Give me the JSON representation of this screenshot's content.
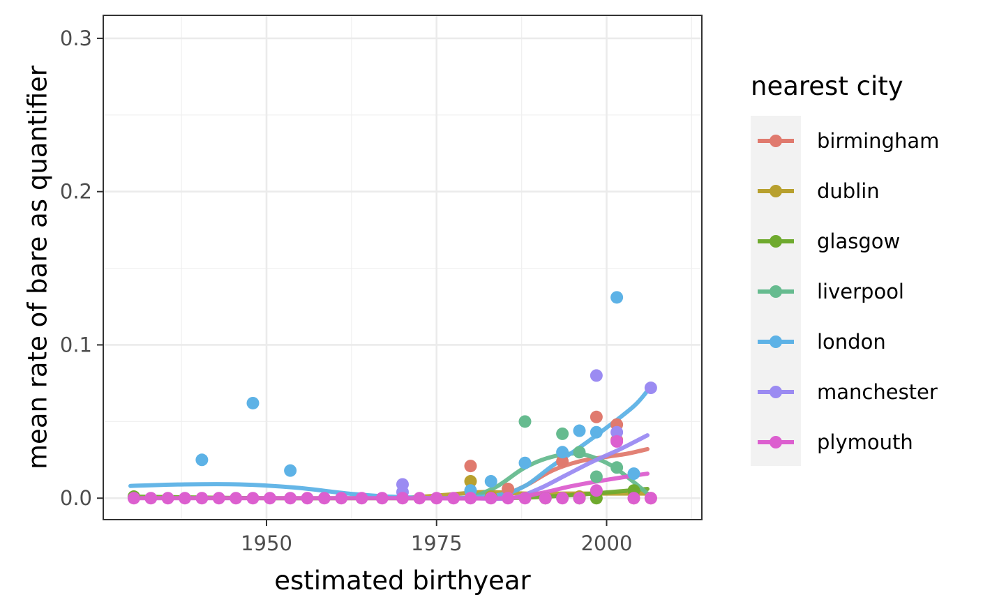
{
  "chart_data": {
    "type": "scatter",
    "title": "",
    "xlabel": "estimated birthyear",
    "ylabel": "mean rate of bare as quantifier",
    "xlim": [
      1926,
      2014
    ],
    "ylim": [
      -0.014,
      0.315
    ],
    "x_ticks": [
      1950,
      1975,
      2000
    ],
    "x_tick_labels": [
      "1950",
      "1975",
      "2000"
    ],
    "y_ticks": [
      0,
      0.1,
      0.2,
      0.3
    ],
    "y_tick_labels": [
      "0.0",
      "0.1",
      "0.2",
      "0.3"
    ],
    "grid": true,
    "legend": {
      "title": "nearest city",
      "position": "right"
    },
    "series": [
      {
        "name": "birmingham",
        "color": "#E07A6E",
        "points": [
          [
            1980,
            0.021
          ],
          [
            1985.5,
            0.006
          ],
          [
            1993.5,
            0.024
          ],
          [
            1998.5,
            0.053
          ],
          [
            2001.5,
            0.048
          ],
          [
            2001.5,
            0.038
          ],
          [
            2004,
            0
          ],
          [
            2006.5,
            0
          ]
        ],
        "smooth": [
          [
            1980,
            0
          ],
          [
            1984,
            0.001
          ],
          [
            1988,
            0.008
          ],
          [
            1992,
            0.018
          ],
          [
            1996,
            0.024
          ],
          [
            2000,
            0.027
          ],
          [
            2003,
            0.029
          ],
          [
            2006,
            0.032
          ]
        ]
      },
      {
        "name": "dublin",
        "color": "#B8A02E",
        "points": [
          [
            1980,
            0.011
          ],
          [
            1983,
            0.001
          ],
          [
            1996,
            0.001
          ],
          [
            2004,
            0.004
          ]
        ],
        "smooth": [
          [
            1970,
            0
          ],
          [
            1976,
            0.002
          ],
          [
            1982,
            0.004
          ],
          [
            1988,
            0.003
          ],
          [
            1994,
            0.003
          ],
          [
            2000,
            0.003
          ],
          [
            2006,
            0.003
          ]
        ]
      },
      {
        "name": "glasgow",
        "color": "#6FAA2E",
        "points": [
          [
            1930.5,
            0.001
          ],
          [
            1991,
            0
          ],
          [
            1996,
            0
          ],
          [
            1998.5,
            0
          ],
          [
            2004,
            0.005
          ]
        ],
        "smooth": [
          [
            1930,
            0.001
          ],
          [
            1950,
            0
          ],
          [
            1970,
            0
          ],
          [
            1985,
            0
          ],
          [
            1995,
            0.002
          ],
          [
            2006,
            0.006
          ]
        ]
      },
      {
        "name": "liverpool",
        "color": "#66BB8F",
        "points": [
          [
            1988,
            0.05
          ],
          [
            1993.5,
            0.042
          ],
          [
            1996,
            0.03
          ],
          [
            1998.5,
            0.014
          ],
          [
            2001.5,
            0.02
          ]
        ],
        "smooth": [
          [
            1980,
            0
          ],
          [
            1984,
            0.008
          ],
          [
            1988,
            0.02
          ],
          [
            1992,
            0.027
          ],
          [
            1996,
            0.029
          ],
          [
            2000,
            0.023
          ],
          [
            2003,
            0.014
          ],
          [
            2006,
            0.003
          ]
        ]
      },
      {
        "name": "london",
        "color": "#5DB2E6",
        "points": [
          [
            1940.5,
            0.025
          ],
          [
            1948,
            0.062
          ],
          [
            1953.5,
            0.018
          ],
          [
            1980,
            0.005
          ],
          [
            1983,
            0.011
          ],
          [
            1988,
            0.023
          ],
          [
            1993.5,
            0.03
          ],
          [
            1996,
            0.044
          ],
          [
            1998.5,
            0.043
          ],
          [
            2001.5,
            0.131
          ],
          [
            2004,
            0.016
          ]
        ],
        "smooth": [
          [
            1930,
            0.008
          ],
          [
            1938,
            0.009
          ],
          [
            1946,
            0.009
          ],
          [
            1954,
            0.007
          ],
          [
            1962,
            0.003
          ],
          [
            1968,
            0.001
          ],
          [
            1976,
            0
          ],
          [
            1984,
            0.002
          ],
          [
            1988,
            0.008
          ],
          [
            1992,
            0.021
          ],
          [
            1996,
            0.033
          ],
          [
            2000,
            0.046
          ],
          [
            2004,
            0.06
          ],
          [
            2006,
            0.07
          ]
        ]
      },
      {
        "name": "manchester",
        "color": "#9B8BF2",
        "points": [
          [
            1970,
            0.009
          ],
          [
            1970,
            0.004
          ],
          [
            1998.5,
            0.08
          ],
          [
            2001.5,
            0.043
          ],
          [
            2006.5,
            0.072
          ]
        ],
        "smooth": [
          [
            1980,
            0
          ],
          [
            1986,
            0
          ],
          [
            1990,
            0.006
          ],
          [
            1994,
            0.015
          ],
          [
            1998,
            0.024
          ],
          [
            2002,
            0.032
          ],
          [
            2006,
            0.041
          ]
        ]
      },
      {
        "name": "plymouth",
        "color": "#DC5FCF",
        "points": [
          [
            1930.5,
            0
          ],
          [
            1933,
            0
          ],
          [
            1935.5,
            0
          ],
          [
            1938,
            0
          ],
          [
            1940.5,
            0
          ],
          [
            1943,
            0
          ],
          [
            1945.5,
            0
          ],
          [
            1948,
            0
          ],
          [
            1950.5,
            0
          ],
          [
            1953.5,
            0
          ],
          [
            1956,
            0
          ],
          [
            1958.5,
            0
          ],
          [
            1961,
            0
          ],
          [
            1964,
            0
          ],
          [
            1967,
            0
          ],
          [
            1970,
            0
          ],
          [
            1972.5,
            0
          ],
          [
            1975,
            0
          ],
          [
            1977.5,
            0
          ],
          [
            1980,
            0
          ],
          [
            1983,
            0
          ],
          [
            1985.5,
            0
          ],
          [
            1988,
            0
          ],
          [
            1991,
            0
          ],
          [
            1993.5,
            0
          ],
          [
            1996,
            0
          ],
          [
            1998.5,
            0.005
          ],
          [
            2001.5,
            0.037
          ],
          [
            2004,
            0
          ],
          [
            2006.5,
            0
          ]
        ],
        "smooth": [
          [
            1930,
            0
          ],
          [
            1950,
            0
          ],
          [
            1970,
            0
          ],
          [
            1985,
            0
          ],
          [
            1990,
            0.003
          ],
          [
            1995,
            0.008
          ],
          [
            2000,
            0.012
          ],
          [
            2006,
            0.016
          ]
        ]
      }
    ]
  }
}
